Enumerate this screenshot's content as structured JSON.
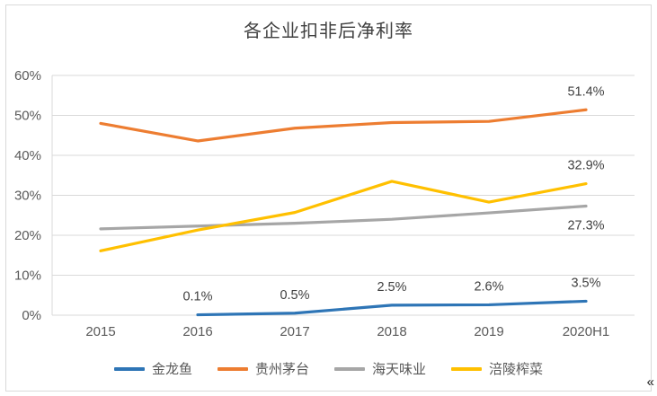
{
  "chart_data": {
    "type": "line",
    "title": "各企业扣非后净利率",
    "categories": [
      "2015",
      "2016",
      "2017",
      "2018",
      "2019",
      "2020H1"
    ],
    "ylim": [
      0,
      60
    ],
    "yticks": [
      "0%",
      "10%",
      "20%",
      "30%",
      "40%",
      "50%",
      "60%"
    ],
    "grid": true,
    "legend_position": "bottom",
    "series": [
      {
        "name": "金龙鱼",
        "color": "#2E75B6",
        "values": [
          null,
          0.1,
          0.5,
          2.5,
          2.6,
          3.5
        ],
        "labels": [
          "",
          "0.1%",
          "0.5%",
          "2.5%",
          "2.6%",
          "3.5%"
        ],
        "label_side": "above"
      },
      {
        "name": "贵州茅台",
        "color": "#ED7D31",
        "values": [
          48.0,
          43.6,
          46.8,
          48.2,
          48.5,
          51.4
        ],
        "labels": [
          "",
          "",
          "",
          "",
          "",
          "51.4%"
        ],
        "label_side": "above"
      },
      {
        "name": "海天味业",
        "color": "#A6A6A6",
        "values": [
          21.6,
          22.3,
          23.0,
          24.0,
          25.6,
          27.3
        ],
        "labels": [
          "",
          "",
          "",
          "",
          "",
          "27.3%"
        ],
        "label_side": "below"
      },
      {
        "name": "涪陵榨菜",
        "color": "#FFC000",
        "values": [
          16.1,
          21.3,
          25.7,
          33.5,
          28.3,
          32.9
        ],
        "labels": [
          "",
          "",
          "",
          "",
          "",
          "32.9%"
        ],
        "label_side": "above"
      }
    ]
  },
  "watermark": "«"
}
